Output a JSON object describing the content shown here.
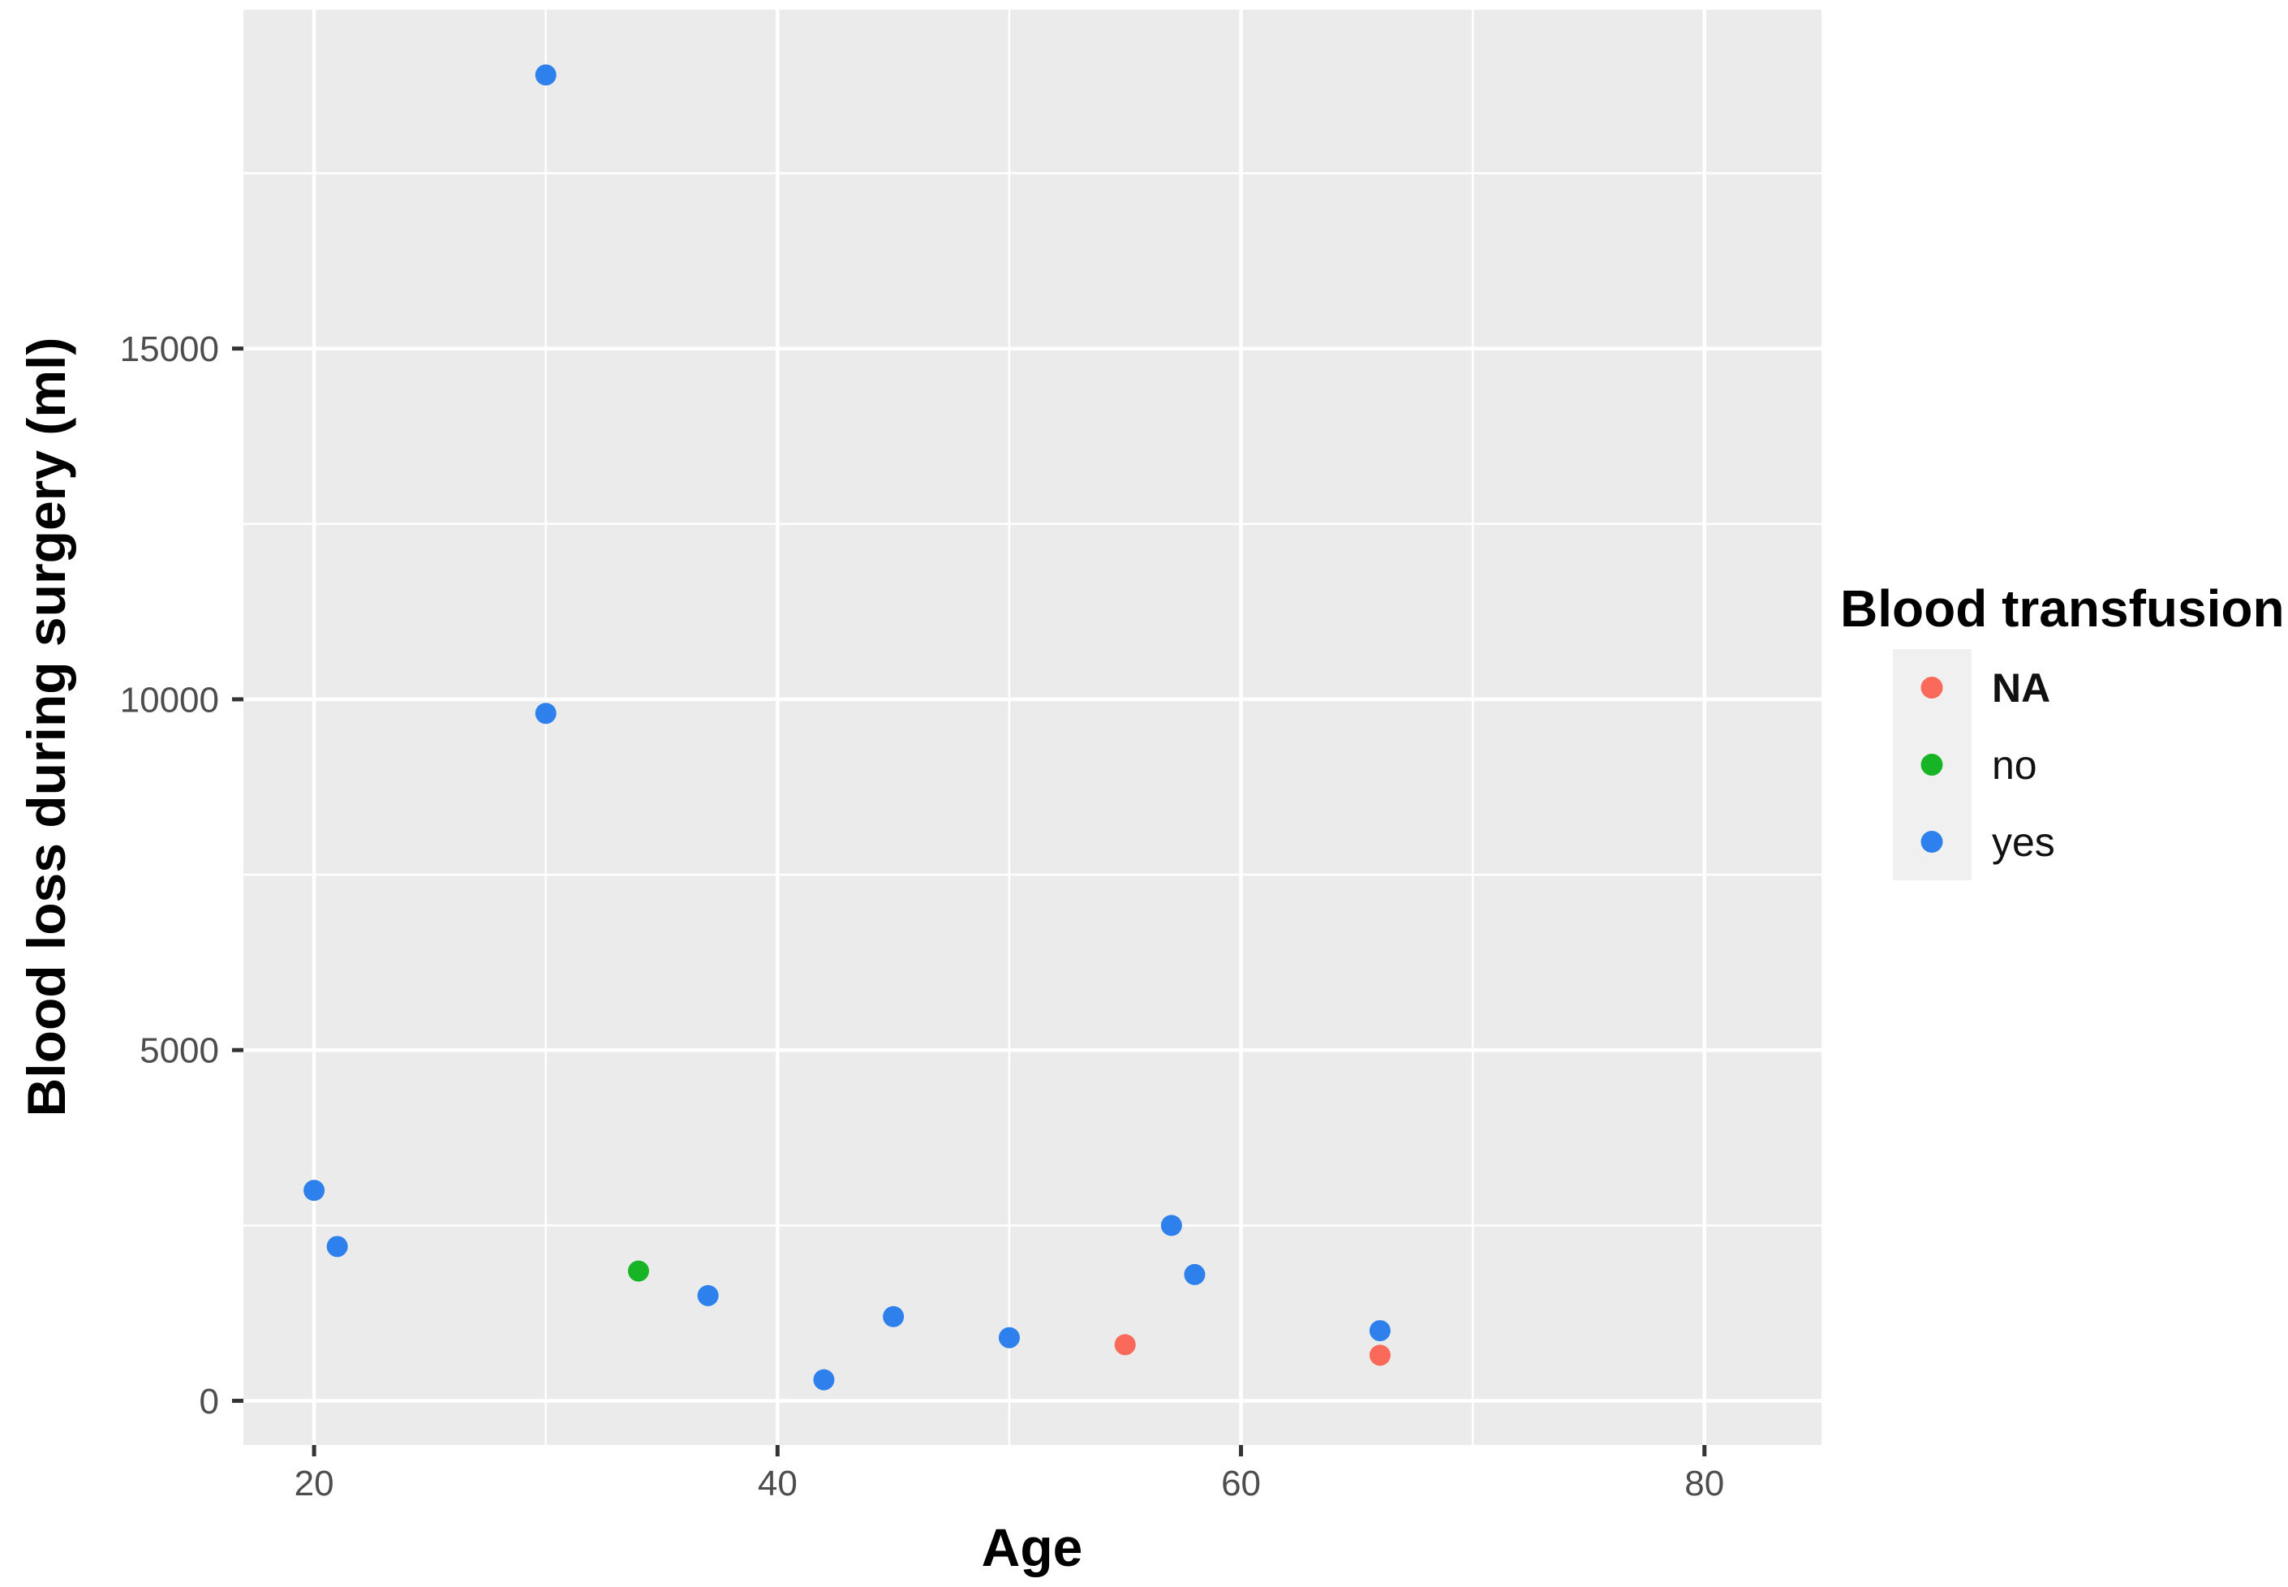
{
  "figure": {
    "background": "#FFFFFF",
    "panel_background": "#EBEBEB",
    "gridline_color": "#FFFFFF",
    "tick_mark_color": "#333333",
    "tick_label_color": "#4D4D4D",
    "axis_title_color": "#000000"
  },
  "chart_data": {
    "type": "scatter",
    "title": "",
    "xlabel": "Age",
    "ylabel": "Blood loss during surgery (ml)",
    "xlim": [
      16.95,
      85.05
    ],
    "ylim": [
      -630,
      19830
    ],
    "x_major_ticks": [
      20,
      40,
      60,
      80
    ],
    "x_minor_gridlines": [
      30,
      50,
      70
    ],
    "y_major_ticks": [
      0,
      5000,
      10000,
      15000
    ],
    "y_minor_gridlines": [
      2500,
      7500,
      12500,
      17500
    ],
    "grid": "on",
    "legend_position": "right",
    "series": [
      {
        "name": "NA",
        "color": "#FA695A",
        "points": [
          [
            55,
            800
          ],
          [
            66,
            650
          ]
        ]
      },
      {
        "name": "no",
        "color": "#17B425",
        "points": [
          [
            34,
            1850
          ]
        ]
      },
      {
        "name": "yes",
        "color": "#2E80EC",
        "points": [
          [
            20,
            3000
          ],
          [
            21,
            2200
          ],
          [
            30,
            18900
          ],
          [
            30,
            9800
          ],
          [
            37,
            1500
          ],
          [
            42,
            300
          ],
          [
            45,
            1200
          ],
          [
            50,
            900
          ],
          [
            57,
            2500
          ],
          [
            58,
            1800
          ],
          [
            66,
            1000
          ]
        ]
      }
    ]
  },
  "legend": {
    "title": "Blood transfusion",
    "key_background": "#F0F0F0",
    "entries": [
      {
        "label": "NA",
        "color": "#FA695A",
        "bold": true
      },
      {
        "label": "no",
        "color": "#17B425",
        "bold": false
      },
      {
        "label": "yes",
        "color": "#2E80EC",
        "bold": false
      }
    ]
  }
}
